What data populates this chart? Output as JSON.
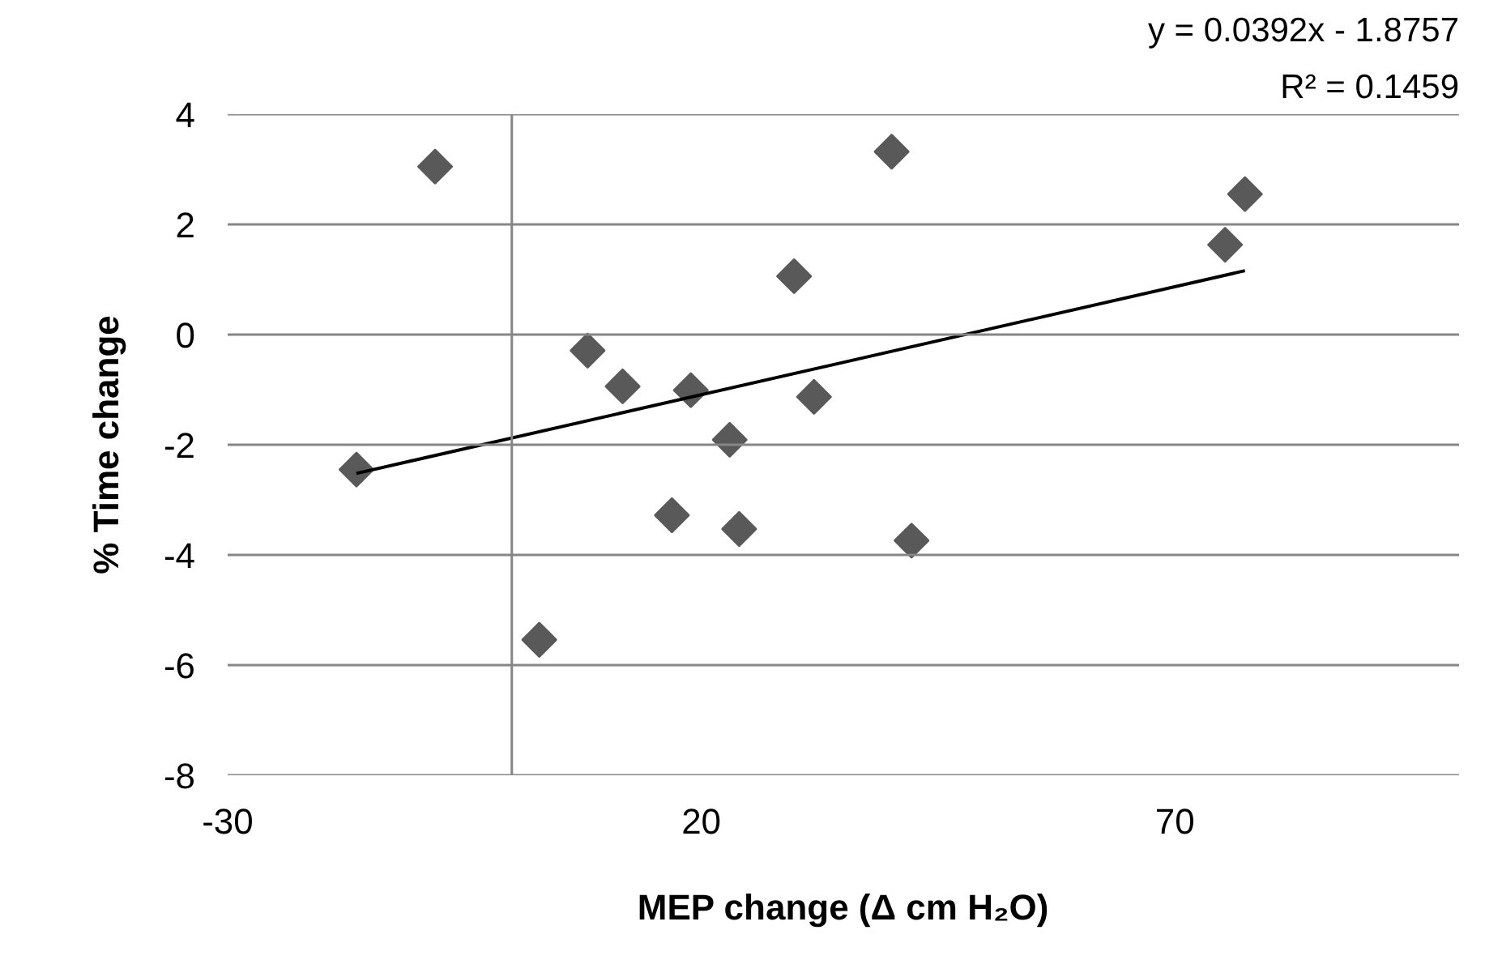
{
  "chart_data": {
    "type": "scatter",
    "xlabel": "MEP change (Δ cm H₂O)",
    "ylabel": "% Time change",
    "annotations": [
      "y = 0.0392x - 1.8757",
      "R² = 0.1459"
    ],
    "xlim": [
      -30,
      100
    ],
    "xticks": [
      -30,
      20,
      70
    ],
    "ylim": [
      -8,
      4
    ],
    "yticks": [
      -8,
      -6,
      -4,
      -2,
      0,
      2,
      4
    ],
    "grid": "y",
    "marker": "diamond",
    "ref_lines": [
      {
        "axis": "x",
        "value": 0,
        "color": "#868686"
      }
    ],
    "series": [
      {
        "color": "#595959",
        "x": [
          -16.4,
          -8.1,
          2.9,
          8.0,
          11.7,
          16.9,
          18.9,
          23.0,
          24.0,
          29.8,
          31.9,
          40.1,
          42.2,
          75.3,
          77.4
        ],
        "values": [
          -2.45,
          3.05,
          -5.54,
          -0.29,
          -0.94,
          -3.28,
          -1.01,
          -1.91,
          -3.53,
          1.06,
          -1.13,
          3.32,
          -3.74,
          1.63,
          2.55
        ]
      },
      {
        "type": "line",
        "color": "#000000",
        "x": [
          -16.4,
          77.4
        ],
        "values": [
          -2.52,
          1.16
        ],
        "line_style": "solid",
        "marker": "none"
      }
    ]
  }
}
